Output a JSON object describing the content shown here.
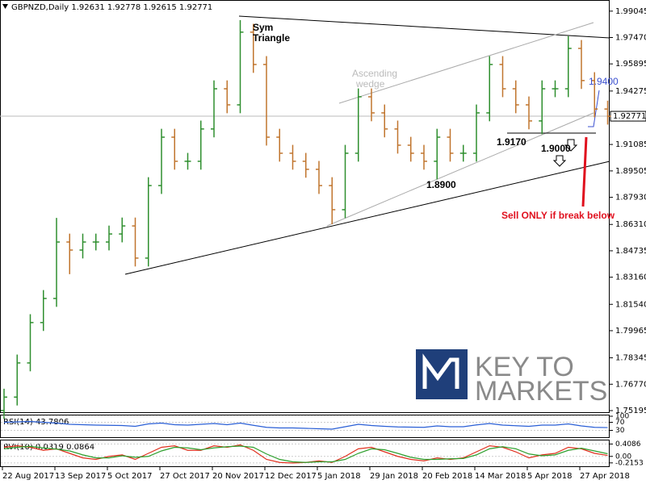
{
  "chart_data": {
    "type": "ohlc",
    "header": "GBPNZD,Daily  1.92631 1.92778 1.92615 1.92771",
    "categories": [
      "22 Aug 2017",
      null,
      null,
      null,
      "13 Sep 2017",
      null,
      null,
      null,
      "5 Oct 2017",
      null,
      null,
      null,
      "27 Oct 2017",
      null,
      null,
      null,
      "20 Nov 2017",
      null,
      null,
      null,
      "12 Dec 2017",
      null,
      null,
      null,
      "5 Jan 2018",
      null,
      null,
      null,
      "29 Jan 2018",
      null,
      null,
      null,
      "20 Feb 2018",
      null,
      null,
      null,
      "14 Mar 2018",
      null,
      null,
      null,
      "5 Apr 2018",
      null,
      null,
      null,
      "27 Apr 2018",
      null,
      null
    ],
    "open": [
      1.752,
      1.76,
      1.7804,
      1.8045,
      1.8189,
      1.8526,
      1.8478,
      1.8526,
      1.8526,
      1.8574,
      1.8622,
      1.843,
      1.8863,
      1.9152,
      1.9008,
      1.9008,
      1.9201,
      1.9441,
      1.9345,
      1.9779,
      1.9586,
      1.9152,
      1.9056,
      1.9008,
      1.896,
      1.8863,
      1.8719,
      1.9056,
      1.9393,
      1.9297,
      1.9201,
      1.9104,
      1.9056,
      1.9008,
      1.9152,
      1.9056,
      1.9056,
      1.9297,
      1.9586,
      1.9441,
      1.9345,
      1.9249,
      1.9441,
      1.9441,
      1.9682,
      1.949,
      1.932
    ],
    "high": [
      1.765,
      1.7854,
      1.8095,
      1.8239,
      1.867,
      1.8576,
      1.8576,
      1.8576,
      1.8624,
      1.8672,
      1.8672,
      1.8913,
      1.9202,
      1.9202,
      1.9058,
      1.9251,
      1.9491,
      1.9491,
      1.9851,
      1.9829,
      1.9636,
      1.9202,
      1.9106,
      1.9058,
      1.901,
      1.8913,
      1.9106,
      1.9443,
      1.9443,
      1.9347,
      1.9251,
      1.9154,
      1.9106,
      1.9202,
      1.9202,
      1.9106,
      1.9347,
      1.9636,
      1.9636,
      1.9491,
      1.9395,
      1.9491,
      1.9491,
      1.9755,
      1.9732,
      1.954,
      1.937
    ],
    "low": [
      1.747,
      1.755,
      1.7754,
      1.7995,
      1.8139,
      1.8334,
      1.8428,
      1.8476,
      1.8476,
      1.8524,
      1.838,
      1.838,
      1.8813,
      1.8958,
      1.8958,
      1.8958,
      1.9151,
      1.9295,
      1.9295,
      1.9536,
      1.9102,
      1.9006,
      1.8958,
      1.891,
      1.8813,
      1.8632,
      1.8669,
      1.9006,
      1.9247,
      1.9151,
      1.9054,
      1.9006,
      1.8958,
      1.89,
      1.9006,
      1.9006,
      1.9006,
      1.9247,
      1.9391,
      1.9295,
      1.9199,
      1.917,
      1.9391,
      1.9391,
      1.944,
      1.927,
      1.9227
    ],
    "close": [
      1.76,
      1.7804,
      1.8045,
      1.8189,
      1.8526,
      1.8478,
      1.8526,
      1.8526,
      1.8574,
      1.8622,
      1.843,
      1.8863,
      1.9152,
      1.9008,
      1.9008,
      1.9201,
      1.9441,
      1.9345,
      1.9779,
      1.9586,
      1.9152,
      1.9056,
      1.9008,
      1.896,
      1.8863,
      1.8719,
      1.9056,
      1.9393,
      1.9297,
      1.9201,
      1.9104,
      1.9056,
      1.9008,
      1.9152,
      1.9056,
      1.9056,
      1.9297,
      1.9586,
      1.9441,
      1.9345,
      1.9249,
      1.9441,
      1.9441,
      1.9682,
      1.949,
      1.932,
      1.9277
    ],
    "up_color": "#2f8f2f",
    "down_color": "#c0752e",
    "ylim": [
      1.7505,
      1.9971
    ],
    "yticks": [
      1.99045,
      {
        "value": 1.9747,
        "label": "1.97470"
      },
      1.95895,
      1.94275,
      1.91085,
      1.89505,
      {
        "value": 1.8793,
        "label": "1.87930"
      },
      {
        "value": 1.8631,
        "label": "1.86310"
      },
      1.84735,
      {
        "value": 1.8316,
        "label": "1.83160"
      },
      {
        "value": 1.8154,
        "label": "1.81540"
      },
      1.79965,
      1.78345,
      {
        "value": 1.7677,
        "label": "1.76770"
      },
      1.75195
    ],
    "current_price": 1.92771,
    "annotations": [
      "Sym",
      "Triangle",
      "Ascending",
      "wedge",
      "1.9400",
      "1.9170",
      "1.9000",
      "1.8900",
      "Sell ONLY if break below"
    ],
    "logo": [
      "KEY TO",
      "MARKETS"
    ],
    "rsi": {
      "label": "RSI(14) 43.7806",
      "color": "#2a5fd6",
      "ylim": [
        0,
        100
      ],
      "yticks": [
        100,
        70,
        30
      ],
      "values": [
        70,
        72,
        74,
        70,
        66,
        60,
        58,
        56,
        55,
        54,
        50,
        62,
        66,
        58,
        56,
        60,
        64,
        58,
        66,
        55,
        45,
        42,
        42,
        40,
        38,
        36,
        48,
        60,
        54,
        50,
        47,
        46,
        45,
        52,
        48,
        48,
        57,
        64,
        56,
        53,
        50,
        56,
        56,
        62,
        52,
        45,
        43.7806
      ]
    },
    "rvi": {
      "label": "RVI(10) 0.0319 0.0864",
      "color": "#e0301e",
      "signal_color": "#2ea02e",
      "ylim": [
        -0.3,
        0.5
      ],
      "yticks": [
        0.4086,
        {
          "value": 0,
          "label": "0.00"
        },
        -0.2153
      ],
      "values": [
        0.3,
        0.35,
        0.3,
        0.2,
        0.25,
        0.1,
        -0.05,
        -0.1,
        0,
        0.05,
        -0.1,
        0.1,
        0.3,
        0.35,
        0.2,
        0.2,
        0.35,
        0.3,
        0.38,
        0.2,
        -0.1,
        -0.2,
        -0.22,
        -0.2,
        -0.15,
        -0.2,
        0,
        0.25,
        0.3,
        0.15,
        0,
        -0.1,
        -0.15,
        -0.05,
        -0.1,
        -0.05,
        0.15,
        0.35,
        0.3,
        0.15,
        -0.05,
        0.05,
        0.1,
        0.3,
        0.25,
        0.1,
        0.0319
      ],
      "signal": [
        0.25,
        0.3,
        0.33,
        0.28,
        0.24,
        0.18,
        0.05,
        -0.05,
        -0.05,
        0.02,
        -0.03,
        0.0,
        0.18,
        0.3,
        0.28,
        0.22,
        0.28,
        0.32,
        0.34,
        0.3,
        0.08,
        -0.1,
        -0.18,
        -0.2,
        -0.18,
        -0.18,
        -0.1,
        0.1,
        0.25,
        0.22,
        0.1,
        -0.03,
        -0.1,
        -0.1,
        -0.08,
        -0.07,
        0.05,
        0.25,
        0.32,
        0.25,
        0.08,
        0.02,
        0.05,
        0.2,
        0.27,
        0.18,
        0.0864
      ]
    }
  }
}
